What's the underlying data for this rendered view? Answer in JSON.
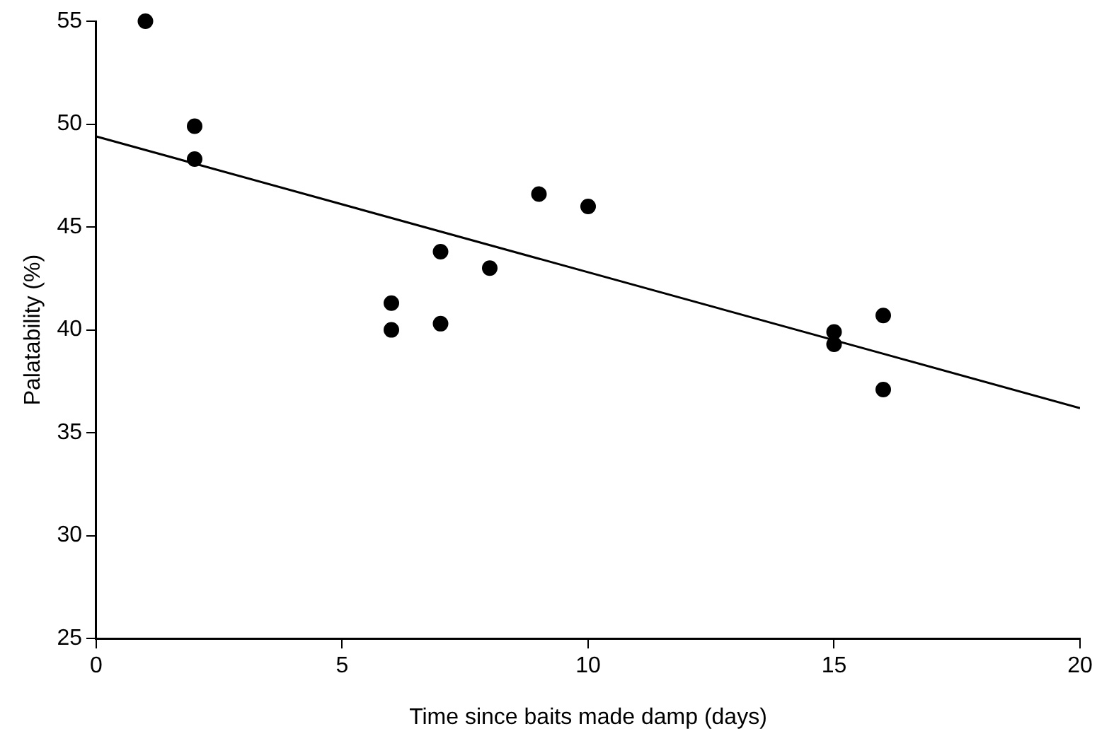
{
  "chart_data": {
    "type": "scatter",
    "xlabel": "Time since baits made damp (days)",
    "ylabel": "Palatability (%)",
    "xlim": [
      0,
      20
    ],
    "xticks": [
      0,
      5,
      10,
      15,
      20
    ],
    "ylim": [
      25,
      55
    ],
    "yticks": [
      25,
      30,
      35,
      40,
      45,
      50,
      55
    ],
    "grid": false,
    "legend": false,
    "marker": "circle",
    "series": [
      {
        "color": "#000000",
        "x": [
          1,
          2,
          2,
          6,
          6,
          7,
          7,
          8,
          9,
          10,
          15,
          15,
          16,
          16
        ],
        "values": [
          55.0,
          49.9,
          48.3,
          41.3,
          40.0,
          43.8,
          40.3,
          43.0,
          46.6,
          46.0,
          39.9,
          39.3,
          40.7,
          37.1
        ]
      },
      {
        "type": "line",
        "color": "#000000",
        "x": [
          0,
          20
        ],
        "values": [
          49.4,
          36.2
        ],
        "marker": "none",
        "line_style": "solid"
      }
    ]
  }
}
